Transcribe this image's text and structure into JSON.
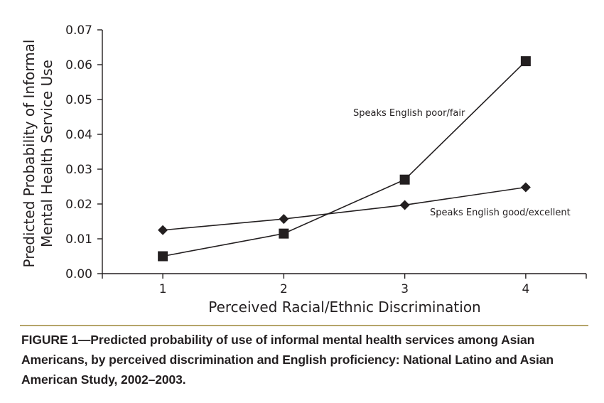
{
  "chart_data": {
    "type": "line",
    "xlabel": "Perceived Racial/Ethnic Discrimination",
    "ylabel": [
      "Predicted Probability of Informal",
      "Mental Health Service Use"
    ],
    "x": [
      1,
      2,
      3,
      4
    ],
    "xticks": [
      "1",
      "2",
      "3",
      "4"
    ],
    "ylim": [
      0,
      0.07
    ],
    "yticks": [
      "0.00",
      "0.01",
      "0.02",
      "0.03",
      "0.04",
      "0.05",
      "0.06",
      "0.07"
    ],
    "grid": false,
    "series": [
      {
        "name": "Speaks English poor/fair",
        "marker": "square",
        "color": "#231f20",
        "values": [
          0.005,
          0.0115,
          0.027,
          0.061
        ]
      },
      {
        "name": "Speaks English good/excellent",
        "marker": "diamond",
        "color": "#231f20",
        "values": [
          0.0125,
          0.0157,
          0.0197,
          0.0248
        ]
      }
    ]
  },
  "caption": "FIGURE 1—Predicted probability of use of informal mental health services among Asian Americans, by perceived discrimination and English proficiency: National Latino and Asian American Study, 2002–2003.",
  "caption_rule_color": "#b5a46a"
}
